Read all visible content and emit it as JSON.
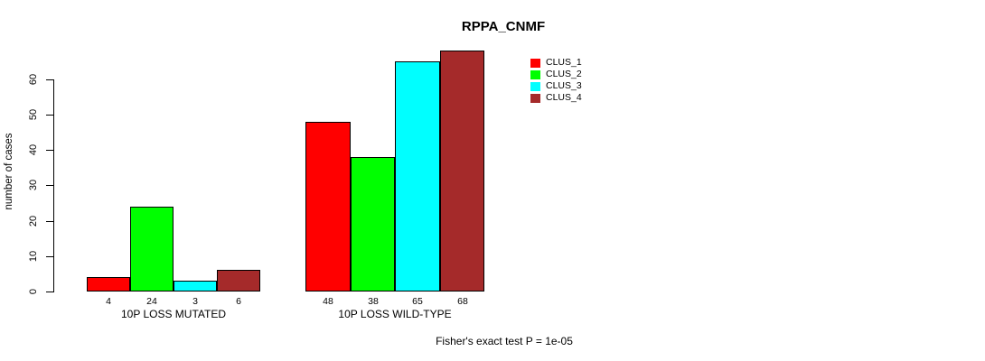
{
  "chart_data": {
    "type": "bar",
    "title": "RPPA_CNMF",
    "categories": [
      "10P LOSS MUTATED",
      "10P LOSS WILD-TYPE"
    ],
    "series": [
      {
        "name": "CLUS_1",
        "color": "#FF0000",
        "values": [
          4,
          48
        ]
      },
      {
        "name": "CLUS_2",
        "color": "#00FF00",
        "values": [
          24,
          38
        ]
      },
      {
        "name": "CLUS_3",
        "color": "#00FFFF",
        "values": [
          3,
          65
        ]
      },
      {
        "name": "CLUS_4",
        "color": "#A52A2A",
        "values": [
          6,
          68
        ]
      }
    ],
    "xlabel": "",
    "ylabel": "number of cases",
    "ylim": [
      0,
      68
    ],
    "yticks": [
      0,
      10,
      20,
      30,
      40,
      50,
      60
    ],
    "bar_value_labels": true,
    "legend_position": "top-right",
    "grid": false,
    "annotation": "Fisher's exact test P = 1e-05"
  }
}
